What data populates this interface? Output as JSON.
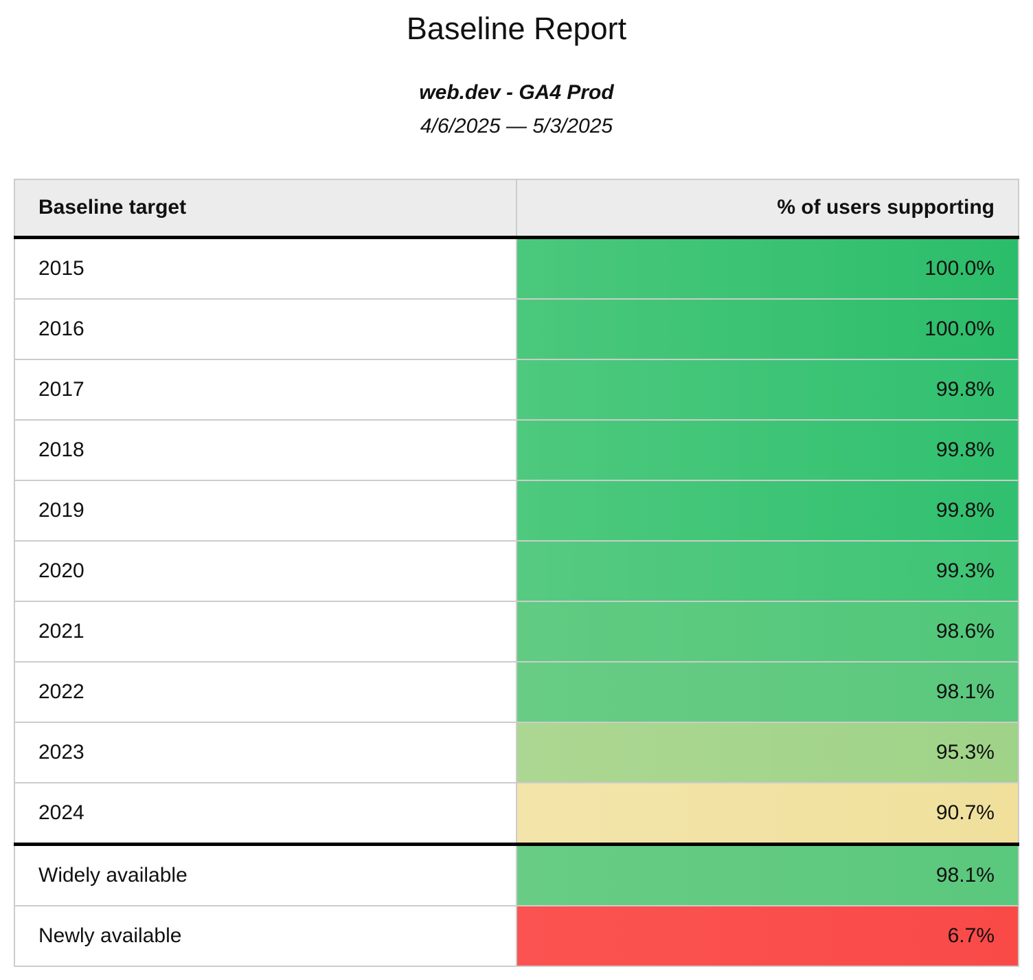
{
  "header": {
    "title": "Baseline Report",
    "subtitle": "web.dev - GA4 Prod",
    "date_range": "4/6/2025 — 5/3/2025"
  },
  "table": {
    "columns": [
      {
        "label": "Baseline target"
      },
      {
        "label": "% of users supporting"
      }
    ],
    "rows": [
      {
        "target": "2015",
        "value": "100.0%",
        "color_left": "#4bc87c",
        "color_right": "#2bbd6a",
        "separator_above": false
      },
      {
        "target": "2016",
        "value": "100.0%",
        "color_left": "#4bc87c",
        "color_right": "#2bbd6a",
        "separator_above": false
      },
      {
        "target": "2017",
        "value": "99.8%",
        "color_left": "#4ec97e",
        "color_right": "#30c06f",
        "separator_above": false
      },
      {
        "target": "2018",
        "value": "99.8%",
        "color_left": "#4ec97e",
        "color_right": "#30c06f",
        "separator_above": false
      },
      {
        "target": "2019",
        "value": "99.8%",
        "color_left": "#4ec97e",
        "color_right": "#30c06f",
        "separator_above": false
      },
      {
        "target": "2020",
        "value": "99.3%",
        "color_left": "#56ca81",
        "color_right": "#3ec474",
        "separator_above": false
      },
      {
        "target": "2021",
        "value": "98.6%",
        "color_left": "#61cb82",
        "color_right": "#50c77a",
        "separator_above": false
      },
      {
        "target": "2022",
        "value": "98.1%",
        "color_left": "#68cc84",
        "color_right": "#5ac87d",
        "separator_above": false
      },
      {
        "target": "2023",
        "value": "95.3%",
        "color_left": "#acd792",
        "color_right": "#9fd388",
        "separator_above": false
      },
      {
        "target": "2024",
        "value": "90.7%",
        "color_left": "#f3e5aa",
        "color_right": "#f0e09c",
        "separator_above": false
      },
      {
        "target": "Widely available",
        "value": "98.1%",
        "color_left": "#68cc84",
        "color_right": "#5ac87d",
        "separator_above": true
      },
      {
        "target": "Newly available",
        "value": "6.7%",
        "color_left": "#fb5351",
        "color_right": "#f94a48",
        "separator_above": false
      }
    ]
  },
  "chart_data": {
    "type": "table",
    "title": "Baseline Report",
    "subtitle": "web.dev - GA4 Prod",
    "date_range": "4/6/2025 — 5/3/2025",
    "columns": [
      "Baseline target",
      "% of users supporting"
    ],
    "categories": [
      "2015",
      "2016",
      "2017",
      "2018",
      "2019",
      "2020",
      "2021",
      "2022",
      "2023",
      "2024",
      "Widely available",
      "Newly available"
    ],
    "values": [
      100.0,
      100.0,
      99.8,
      99.8,
      99.8,
      99.3,
      98.6,
      98.1,
      95.3,
      90.7,
      98.1,
      6.7
    ],
    "value_unit": "%",
    "color_scale": {
      "high": "#2bbd6a",
      "mid": "#f0e09c",
      "low": "#f94a48"
    },
    "layout_hints": {
      "value_alignment": "right",
      "heatmap_cells": true,
      "grid": true
    }
  }
}
